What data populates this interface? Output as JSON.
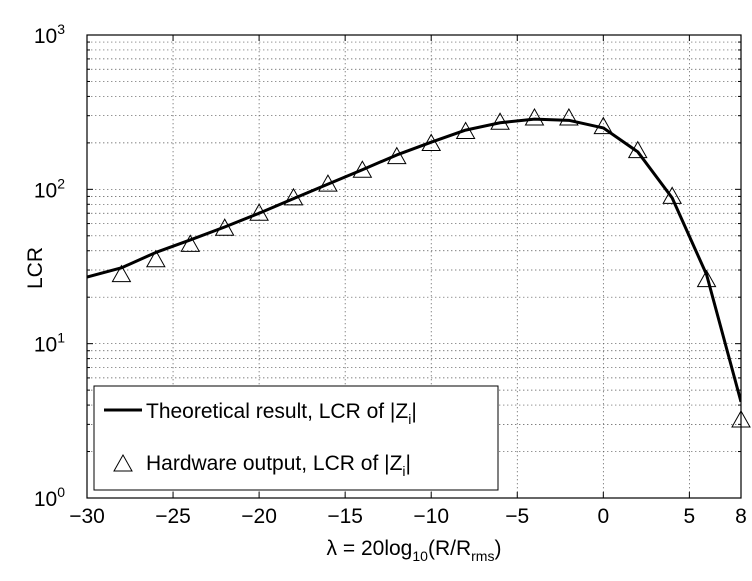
{
  "chart_data": {
    "type": "line",
    "xlabel": {
      "base": "λ = 20log",
      "sub1": "10",
      "mid": "(R/R",
      "sub2": "rms",
      "end": ")"
    },
    "ylabel": "LCR",
    "xlim": [
      -30,
      8
    ],
    "ylim": [
      1,
      1000
    ],
    "yscale": "log",
    "grid": true,
    "legend_position": "bottom-left",
    "x_ticks": [
      {
        "value": -30,
        "label": "−30"
      },
      {
        "value": -25,
        "label": "−25"
      },
      {
        "value": -20,
        "label": "−20"
      },
      {
        "value": -15,
        "label": "−15"
      },
      {
        "value": -10,
        "label": "−10"
      },
      {
        "value": -5,
        "label": "−5"
      },
      {
        "value": 0,
        "label": "0"
      },
      {
        "value": 5,
        "label": "5"
      },
      {
        "value": 8,
        "label": "8"
      }
    ],
    "y_ticks": [
      {
        "value": 1,
        "base": "10",
        "exp": "0"
      },
      {
        "value": 10,
        "base": "10",
        "exp": "1"
      },
      {
        "value": 100,
        "base": "10",
        "exp": "2"
      },
      {
        "value": 1000,
        "base": "10",
        "exp": "3"
      }
    ],
    "series": [
      {
        "legend": {
          "text": "Theoretical result, LCR of |Z",
          "sub": "i",
          "end": "|"
        },
        "style": "solid-line",
        "color": "#000000",
        "x": [
          -30,
          -28,
          -26,
          -24,
          -22,
          -20,
          -18,
          -16,
          -14,
          -12,
          -10,
          -8,
          -6,
          -4,
          -2,
          0,
          2,
          4,
          6,
          8
        ],
        "y": [
          27,
          31,
          39,
          47,
          57,
          70,
          87,
          108,
          134,
          167,
          202,
          242,
          270,
          285,
          280,
          250,
          175,
          88,
          28,
          4.2
        ]
      },
      {
        "legend": {
          "text": "Hardware output, LCR of |Z",
          "sub": "i",
          "end": "|"
        },
        "style": "triangle-markers",
        "color": "#000000",
        "x": [
          -28,
          -26,
          -24,
          -22,
          -20,
          -18,
          -16,
          -14,
          -12,
          -10,
          -8,
          -6,
          -4,
          -2,
          0,
          2,
          4,
          6,
          8
        ],
        "y": [
          28,
          35,
          44,
          56,
          70,
          88,
          108,
          133,
          163,
          198,
          237,
          272,
          290,
          290,
          255,
          178,
          90,
          26,
          3.2
        ]
      }
    ]
  }
}
